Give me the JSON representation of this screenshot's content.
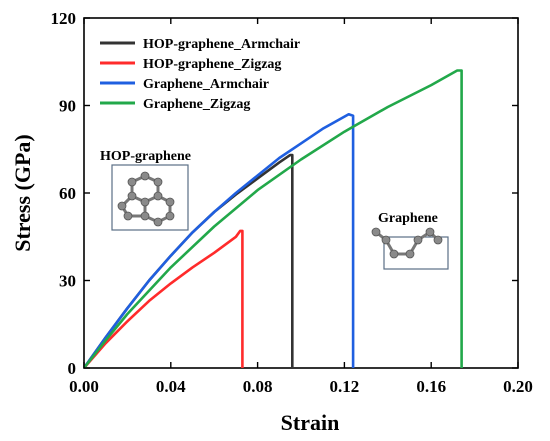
{
  "chart_data": {
    "type": "line",
    "xlabel": "Strain",
    "ylabel": "Stress (GPa)",
    "xlim": [
      0,
      0.2
    ],
    "ylim": [
      0,
      120
    ],
    "xticks": [
      "0.00",
      "0.04",
      "0.08",
      "0.12",
      "0.16",
      "0.20"
    ],
    "xtick_values": [
      0,
      0.04,
      0.08,
      0.12,
      0.16,
      0.2
    ],
    "yticks": [
      "0",
      "30",
      "60",
      "90",
      "120"
    ],
    "ytick_values": [
      0,
      30,
      60,
      90,
      120
    ],
    "legend_position": "top-left",
    "series": [
      {
        "name": "HOP-graphene_Armchair",
        "color": "#333333",
        "x": [
          0,
          0.01,
          0.02,
          0.03,
          0.04,
          0.05,
          0.06,
          0.07,
          0.08,
          0.09,
          0.095,
          0.096,
          0.096
        ],
        "y": [
          0,
          10.5,
          20.5,
          30,
          38.5,
          46.5,
          53.5,
          59.5,
          65,
          70.5,
          73,
          73,
          0
        ]
      },
      {
        "name": "HOP-graphene_Zigzag",
        "color": "#ff2b2b",
        "x": [
          0,
          0.01,
          0.02,
          0.03,
          0.04,
          0.05,
          0.06,
          0.07,
          0.072,
          0.073,
          0.073
        ],
        "y": [
          0,
          8.5,
          16,
          23,
          29,
          34.5,
          39.5,
          45,
          47,
          47,
          0
        ]
      },
      {
        "name": "Graphene_Armchair",
        "color": "#1f5fe0",
        "x": [
          0,
          0.01,
          0.02,
          0.03,
          0.04,
          0.05,
          0.06,
          0.07,
          0.08,
          0.09,
          0.1,
          0.11,
          0.122,
          0.124,
          0.124
        ],
        "y": [
          0,
          10.5,
          20.5,
          30,
          38.5,
          46.5,
          53.5,
          60,
          66,
          72,
          77,
          82,
          87,
          86.5,
          0
        ]
      },
      {
        "name": "Graphene_Zigzag",
        "color": "#22a84a",
        "x": [
          0,
          0.01,
          0.02,
          0.04,
          0.06,
          0.08,
          0.1,
          0.12,
          0.14,
          0.16,
          0.172,
          0.174,
          0.174
        ],
        "y": [
          0,
          9.5,
          18.5,
          34.5,
          48.5,
          61,
          71.5,
          81,
          89.5,
          97,
          102,
          102,
          0
        ]
      }
    ],
    "insets": [
      {
        "title": "HOP-graphene",
        "description": "ring"
      },
      {
        "title": "Graphene",
        "description": "chain"
      }
    ]
  }
}
